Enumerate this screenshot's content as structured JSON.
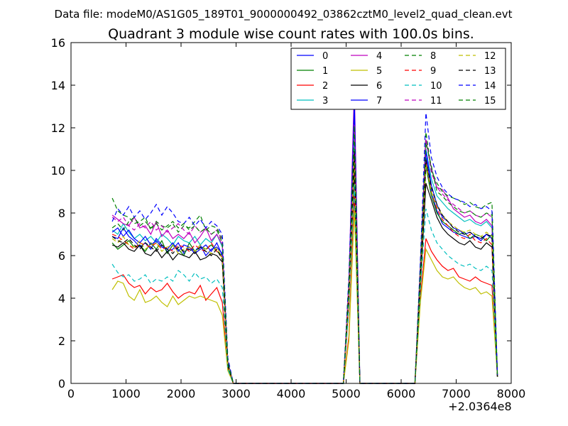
{
  "chart_data": {
    "type": "line",
    "suptitle": "Data file: modeM0/AS1G05_189T01_9000000492_03862cztM0_level2_quad_clean.evt",
    "title": "Quadrant 3 module wise count rates with 100.0s bins.",
    "xlabel": "",
    "ylabel": "",
    "x_offset_label": "+2.0364e8",
    "xlim": [
      0,
      8000
    ],
    "ylim": [
      0,
      16
    ],
    "x_ticks": [
      "0",
      "1000",
      "2000",
      "3000",
      "4000",
      "5000",
      "6000",
      "7000",
      "8000"
    ],
    "y_ticks": [
      "0",
      "2",
      "4",
      "6",
      "8",
      "10",
      "12",
      "14",
      "16"
    ],
    "legend_position": "top-right",
    "x": [
      750,
      850,
      950,
      1050,
      1150,
      1250,
      1350,
      1450,
      1550,
      1650,
      1750,
      1850,
      1950,
      2050,
      2150,
      2250,
      2350,
      2450,
      2550,
      2650,
      2750,
      2850,
      2950,
      3050,
      3150,
      3250,
      3350,
      3450,
      3550,
      3650,
      3750,
      3850,
      3950,
      4050,
      4150,
      4250,
      4350,
      4450,
      4550,
      4650,
      4750,
      4850,
      4950,
      5050,
      5150,
      5250,
      5350,
      5450,
      5550,
      5650,
      5750,
      5850,
      5950,
      6050,
      6150,
      6250,
      6350,
      6450,
      6550,
      6650,
      6750,
      6850,
      6950,
      7050,
      7150,
      7250,
      7350,
      7450,
      7550,
      7650,
      7750
    ],
    "series": [
      {
        "name": "0",
        "color": "#0000ff",
        "dash": "solid",
        "values": [
          6.9,
          6.8,
          7.3,
          6.9,
          6.7,
          6.4,
          6.6,
          6.3,
          6.8,
          6.5,
          6.2,
          6.3,
          6.6,
          6.1,
          6.4,
          6.2,
          6.5,
          6.0,
          6.3,
          6.4,
          6.1,
          1.0,
          0,
          0,
          0,
          0,
          0,
          0,
          0,
          0,
          0,
          0,
          0,
          0,
          0,
          0,
          0,
          0,
          0,
          0,
          0,
          0,
          0,
          4.2,
          11.2,
          0,
          0,
          0,
          0,
          0,
          0,
          0,
          0,
          0,
          0,
          0,
          5.0,
          10.6,
          9.0,
          8.1,
          7.5,
          7.3,
          7.1,
          7.0,
          6.9,
          6.8,
          6.9,
          6.7,
          7.0,
          6.8,
          0.3
        ]
      },
      {
        "name": "1",
        "color": "#008000",
        "dash": "solid",
        "values": [
          6.6,
          6.3,
          6.5,
          6.7,
          6.4,
          6.5,
          6.2,
          6.6,
          6.3,
          6.7,
          6.1,
          6.5,
          6.3,
          6.0,
          6.6,
          6.2,
          6.4,
          6.3,
          6.5,
          6.2,
          6.0,
          0.9,
          0,
          0,
          0,
          0,
          0,
          0,
          0,
          0,
          0,
          0,
          0,
          0,
          0,
          0,
          0,
          0,
          0,
          0,
          0,
          0,
          0,
          4.0,
          10.5,
          0,
          0,
          0,
          0,
          0,
          0,
          0,
          0,
          0,
          0,
          0,
          4.8,
          10.2,
          8.8,
          8.0,
          7.6,
          7.4,
          7.2,
          7.0,
          7.1,
          6.8,
          7.0,
          6.9,
          6.7,
          7.0,
          0.3
        ]
      },
      {
        "name": "2",
        "color": "#ff0000",
        "dash": "solid",
        "values": [
          4.9,
          5.0,
          5.1,
          4.7,
          4.5,
          4.6,
          4.2,
          4.5,
          4.3,
          4.4,
          4.7,
          4.3,
          4.0,
          4.2,
          4.3,
          4.2,
          4.6,
          3.9,
          4.2,
          4.5,
          3.8,
          0.7,
          0,
          0,
          0,
          0,
          0,
          0,
          0,
          0,
          0,
          0,
          0,
          0,
          0,
          0,
          0,
          0,
          0,
          0,
          0,
          0,
          0,
          2.2,
          8.9,
          0,
          0,
          0,
          0,
          0,
          0,
          0,
          0,
          0,
          0,
          0,
          4.0,
          6.8,
          6.2,
          5.8,
          5.5,
          5.3,
          5.4,
          5.0,
          4.9,
          4.8,
          5.0,
          4.8,
          4.7,
          4.6,
          0.3
        ]
      },
      {
        "name": "3",
        "color": "#00bfbf",
        "dash": "solid",
        "values": [
          7.2,
          7.0,
          7.5,
          7.1,
          6.8,
          7.0,
          6.7,
          6.9,
          6.6,
          7.0,
          6.8,
          6.5,
          6.9,
          6.7,
          6.6,
          6.9,
          6.5,
          6.8,
          6.6,
          7.0,
          6.4,
          1.0,
          0,
          0,
          0,
          0,
          0,
          0,
          0,
          0,
          0,
          0,
          0,
          0,
          0,
          0,
          0,
          0,
          0,
          0,
          0,
          0,
          0,
          4.5,
          11.5,
          0,
          0,
          0,
          0,
          0,
          0,
          0,
          0,
          0,
          0,
          0,
          5.2,
          11.0,
          9.6,
          8.8,
          8.5,
          8.2,
          8.0,
          7.8,
          7.6,
          7.7,
          7.5,
          7.4,
          7.6,
          7.3,
          0.4
        ]
      },
      {
        "name": "4",
        "color": "#bf00bf",
        "dash": "solid",
        "values": [
          7.9,
          7.7,
          7.5,
          7.4,
          7.8,
          7.3,
          7.4,
          7.0,
          7.6,
          6.9,
          7.2,
          6.8,
          7.0,
          6.8,
          7.1,
          6.6,
          6.9,
          7.3,
          6.7,
          7.0,
          6.5,
          1.0,
          0,
          0,
          0,
          0,
          0,
          0,
          0,
          0,
          0,
          0,
          0,
          0,
          0,
          0,
          0,
          0,
          0,
          0,
          0,
          0,
          0,
          4.8,
          13.9,
          0,
          0,
          0,
          0,
          0,
          0,
          0,
          0,
          0,
          0,
          0,
          5.5,
          11.4,
          10.1,
          9.2,
          9.1,
          8.7,
          8.2,
          8.0,
          7.8,
          7.9,
          7.6,
          7.5,
          7.7,
          7.4,
          0.4
        ]
      },
      {
        "name": "5",
        "color": "#bfbf00",
        "dash": "solid",
        "values": [
          4.4,
          4.8,
          4.7,
          4.1,
          3.9,
          4.4,
          3.8,
          3.9,
          4.1,
          3.8,
          3.6,
          4.1,
          3.7,
          3.9,
          4.1,
          4.0,
          4.1,
          4.0,
          3.9,
          3.8,
          3.2,
          0.6,
          0,
          0,
          0,
          0,
          0,
          0,
          0,
          0,
          0,
          0,
          0,
          0,
          0,
          0,
          0,
          0,
          0,
          0,
          0,
          0,
          0,
          2.0,
          8.2,
          0,
          0,
          0,
          0,
          0,
          0,
          0,
          0,
          0,
          0,
          0,
          3.8,
          6.3,
          5.8,
          5.3,
          5.0,
          4.9,
          5.0,
          4.7,
          4.5,
          4.4,
          4.5,
          4.2,
          4.3,
          4.1,
          0.3
        ]
      },
      {
        "name": "6",
        "color": "#000000",
        "dash": "solid",
        "values": [
          6.5,
          6.4,
          6.6,
          6.3,
          6.2,
          6.5,
          6.1,
          6.0,
          6.3,
          5.9,
          6.2,
          5.8,
          6.1,
          6.0,
          5.9,
          6.2,
          5.8,
          5.9,
          6.1,
          6.0,
          5.7,
          0.8,
          0,
          0,
          0,
          0,
          0,
          0,
          0,
          0,
          0,
          0,
          0,
          0,
          0,
          0,
          0,
          0,
          0,
          0,
          0,
          0,
          0,
          3.8,
          10.0,
          0,
          0,
          0,
          0,
          0,
          0,
          0,
          0,
          0,
          0,
          0,
          4.6,
          9.4,
          8.6,
          7.8,
          7.3,
          7.0,
          6.8,
          6.6,
          6.5,
          6.7,
          6.4,
          6.3,
          6.6,
          6.4,
          0.3
        ]
      },
      {
        "name": "7",
        "color": "#0000ff",
        "dash": "solid",
        "values": [
          7.1,
          7.3,
          6.9,
          7.2,
          6.8,
          6.6,
          6.9,
          6.5,
          6.7,
          6.4,
          6.3,
          6.6,
          6.2,
          6.5,
          6.4,
          6.1,
          6.3,
          6.5,
          6.2,
          6.6,
          6.0,
          1.0,
          0,
          0,
          0,
          0,
          0,
          0,
          0,
          0,
          0,
          0,
          0,
          0,
          0,
          0,
          0,
          0,
          0,
          0,
          0,
          0,
          0,
          4.3,
          13.2,
          0,
          0,
          0,
          0,
          0,
          0,
          0,
          0,
          0,
          0,
          0,
          5.1,
          10.9,
          9.3,
          8.4,
          7.8,
          7.6,
          7.3,
          7.2,
          7.0,
          7.1,
          6.9,
          6.8,
          7.0,
          6.9,
          0.3
        ]
      },
      {
        "name": "8",
        "color": "#008000",
        "dash": "dashed",
        "values": [
          8.7,
          8.1,
          7.9,
          7.8,
          7.5,
          7.6,
          7.8,
          7.2,
          7.6,
          7.4,
          7.3,
          7.5,
          7.1,
          7.4,
          7.3,
          7.6,
          7.9,
          7.2,
          7.4,
          7.3,
          6.8,
          1.1,
          0,
          0,
          0,
          0,
          0,
          0,
          0,
          0,
          0,
          0,
          0,
          0,
          0,
          0,
          0,
          0,
          0,
          0,
          0,
          0,
          0,
          4.9,
          12.0,
          0,
          0,
          0,
          0,
          0,
          0,
          0,
          0,
          0,
          0,
          0,
          5.6,
          11.8,
          10.0,
          9.4,
          9.0,
          8.8,
          8.7,
          8.6,
          8.4,
          8.5,
          8.3,
          8.2,
          8.4,
          8.5,
          0.4
        ]
      },
      {
        "name": "9",
        "color": "#ff0000",
        "dash": "dashed",
        "values": [
          7.0,
          6.9,
          6.7,
          6.5,
          6.3,
          6.6,
          6.5,
          6.4,
          6.6,
          6.3,
          6.4,
          6.2,
          6.5,
          6.4,
          6.2,
          6.5,
          6.3,
          6.2,
          6.6,
          6.2,
          5.9,
          0.9,
          0,
          0,
          0,
          0,
          0,
          0,
          0,
          0,
          0,
          0,
          0,
          0,
          0,
          0,
          0,
          0,
          0,
          0,
          0,
          0,
          0,
          4.1,
          10.8,
          0,
          0,
          0,
          0,
          0,
          0,
          0,
          0,
          0,
          0,
          0,
          4.9,
          10.4,
          9.0,
          8.2,
          7.7,
          7.4,
          7.1,
          6.9,
          6.8,
          7.0,
          6.7,
          6.6,
          6.8,
          6.5,
          0.3
        ]
      },
      {
        "name": "10",
        "color": "#00bfbf",
        "dash": "dashed",
        "values": [
          5.6,
          5.2,
          5.0,
          5.1,
          4.8,
          4.9,
          5.1,
          4.7,
          4.9,
          4.8,
          5.0,
          4.8,
          5.3,
          5.1,
          4.8,
          5.2,
          4.9,
          5.0,
          4.7,
          4.9,
          4.5,
          0.7,
          0,
          0,
          0,
          0,
          0,
          0,
          0,
          0,
          0,
          0,
          0,
          0,
          0,
          0,
          0,
          0,
          0,
          0,
          0,
          0,
          0,
          3.5,
          9.4,
          0,
          0,
          0,
          0,
          0,
          0,
          0,
          0,
          0,
          0,
          0,
          4.4,
          8.2,
          7.2,
          6.6,
          6.3,
          6.0,
          5.8,
          5.6,
          5.5,
          5.6,
          5.4,
          5.3,
          5.5,
          5.3,
          0.3
        ]
      },
      {
        "name": "11",
        "color": "#bf00bf",
        "dash": "dashed",
        "values": [
          7.8,
          7.6,
          7.8,
          7.4,
          7.2,
          7.5,
          7.3,
          7.6,
          7.2,
          7.4,
          7.1,
          7.3,
          7.5,
          7.2,
          7.0,
          7.4,
          7.1,
          7.3,
          7.0,
          7.2,
          6.7,
          1.0,
          0,
          0,
          0,
          0,
          0,
          0,
          0,
          0,
          0,
          0,
          0,
          0,
          0,
          0,
          0,
          0,
          0,
          0,
          0,
          0,
          0,
          4.7,
          12.3,
          0,
          0,
          0,
          0,
          0,
          0,
          0,
          0,
          0,
          0,
          0,
          5.4,
          11.5,
          9.9,
          9.2,
          8.9,
          8.6,
          8.4,
          8.2,
          8.0,
          8.1,
          7.9,
          7.8,
          8.0,
          7.8,
          0.4
        ]
      },
      {
        "name": "12",
        "color": "#bfbf00",
        "dash": "dashed",
        "values": [
          6.8,
          6.6,
          6.9,
          6.5,
          6.4,
          6.7,
          6.3,
          6.5,
          6.6,
          6.2,
          6.4,
          6.5,
          6.1,
          6.3,
          6.4,
          6.2,
          6.5,
          6.3,
          6.1,
          6.4,
          5.9,
          0.9,
          0,
          0,
          0,
          0,
          0,
          0,
          0,
          0,
          0,
          0,
          0,
          0,
          0,
          0,
          0,
          0,
          0,
          0,
          0,
          0,
          0,
          4.0,
          10.6,
          0,
          0,
          0,
          0,
          0,
          0,
          0,
          0,
          0,
          0,
          0,
          4.9,
          10.3,
          9.0,
          8.3,
          7.9,
          7.6,
          7.4,
          7.2,
          7.1,
          7.2,
          7.0,
          6.9,
          7.1,
          6.9,
          0.3
        ]
      },
      {
        "name": "13",
        "color": "#000000",
        "dash": "dashed",
        "values": [
          6.9,
          6.7,
          6.6,
          6.8,
          6.5,
          6.3,
          6.6,
          6.4,
          6.2,
          6.5,
          6.3,
          6.1,
          6.4,
          6.2,
          6.3,
          6.1,
          6.4,
          6.2,
          6.0,
          6.3,
          5.8,
          0.9,
          0,
          0,
          0,
          0,
          0,
          0,
          0,
          0,
          0,
          0,
          0,
          0,
          0,
          0,
          0,
          0,
          0,
          0,
          0,
          0,
          0,
          4.4,
          10.9,
          0,
          0,
          0,
          0,
          0,
          0,
          0,
          0,
          0,
          0,
          0,
          5.0,
          10.5,
          9.2,
          8.4,
          7.9,
          7.6,
          7.3,
          7.1,
          7.0,
          7.1,
          6.9,
          6.8,
          7.0,
          6.9,
          0.3
        ]
      },
      {
        "name": "14",
        "color": "#0000ff",
        "dash": "dashed",
        "values": [
          7.6,
          8.2,
          7.9,
          8.3,
          7.8,
          8.1,
          7.7,
          8.0,
          8.4,
          7.9,
          8.3,
          8.0,
          7.6,
          7.5,
          7.8,
          7.4,
          7.7,
          7.3,
          7.6,
          7.4,
          7.0,
          1.2,
          0,
          0,
          0,
          0,
          0,
          0,
          0,
          0,
          0,
          0,
          0,
          0,
          0,
          0,
          0,
          0,
          0,
          0,
          0,
          0,
          0,
          5.0,
          12.9,
          0,
          0,
          0,
          0,
          0,
          0,
          0,
          0,
          0,
          0,
          0,
          5.8,
          12.7,
          10.6,
          9.7,
          9.2,
          8.9,
          8.7,
          8.6,
          8.5,
          8.3,
          8.4,
          8.2,
          8.3,
          8.1,
          0.4
        ]
      },
      {
        "name": "15",
        "color": "#008000",
        "dash": "dashed",
        "values": [
          7.3,
          7.5,
          7.2,
          7.6,
          7.8,
          7.4,
          7.6,
          7.3,
          7.5,
          7.2,
          7.4,
          7.6,
          7.3,
          7.5,
          7.2,
          7.4,
          7.1,
          7.3,
          7.0,
          7.2,
          6.6,
          1.0,
          0,
          0,
          0,
          0,
          0,
          0,
          0,
          0,
          0,
          0,
          0,
          0,
          0,
          0,
          0,
          0,
          0,
          0,
          0,
          0,
          0,
          4.6,
          12.1,
          0,
          0,
          0,
          0,
          0,
          0,
          0,
          0,
          0,
          0,
          0,
          5.3,
          11.3,
          10.2,
          9.0,
          8.8,
          8.5,
          8.3,
          8.1,
          8.0,
          8.1,
          7.9,
          7.8,
          8.0,
          7.9,
          0.4
        ]
      }
    ]
  }
}
